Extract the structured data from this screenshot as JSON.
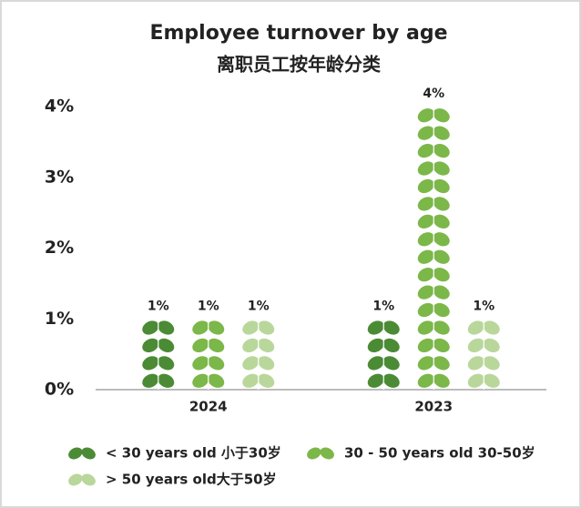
{
  "chart_data": {
    "type": "pictorial-bar",
    "title": "Employee turnover by age",
    "subtitle": "离职员工按年龄分类",
    "categories": [
      "2024",
      "2023"
    ],
    "series": [
      {
        "name": "< 30 years old 小于30岁",
        "color": "#4b8b35",
        "values": [
          1,
          1
        ],
        "value_labels": [
          "1%",
          "1%"
        ]
      },
      {
        "name": "30 - 50 years old 30-50岁",
        "color": "#7cb749",
        "values": [
          1,
          4
        ],
        "value_labels": [
          "1%",
          "4%"
        ]
      },
      {
        "name": "> 50 years old大于50岁",
        "color": "#b9d79b",
        "values": [
          1,
          1
        ],
        "value_labels": [
          "1%",
          "1%"
        ]
      }
    ],
    "ylim": [
      0,
      4
    ],
    "yticks": [
      {
        "value": 0,
        "label": "0%"
      },
      {
        "value": 1,
        "label": "1%"
      },
      {
        "value": 2,
        "label": "2%"
      },
      {
        "value": 3,
        "label": "3%"
      },
      {
        "value": 4,
        "label": "4%"
      }
    ]
  }
}
